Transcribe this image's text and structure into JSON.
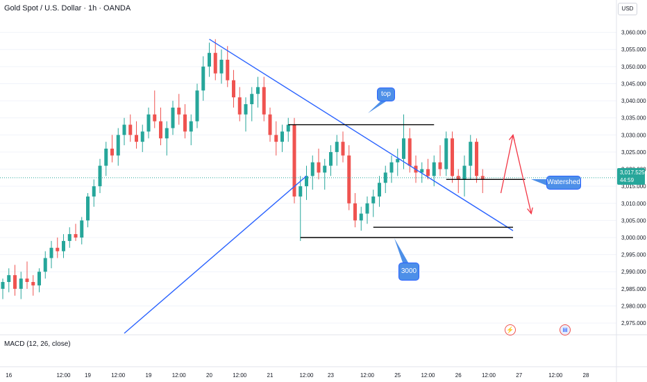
{
  "header": {
    "title": "Gold Spot / U.S. Dollar · 1h · OANDA",
    "currency": "USD"
  },
  "last_price": {
    "value": "3,017.525",
    "countdown": "44:59"
  },
  "indicator_label": "MACD (12, 26, close)",
  "annotations": {
    "top": "top",
    "support": "3000",
    "watershed": "Watershed"
  },
  "colors": {
    "up": "#26a69a",
    "down": "#ef5350",
    "trendline": "#2962ff",
    "level": "#000000",
    "arrow": "#f23645",
    "callout": "#4d8fe8"
  },
  "icons": {
    "event_lightning": "lightning-icon",
    "event_flag": "us-flag-icon"
  },
  "chart_data": {
    "type": "candlestick",
    "interval": "1h",
    "ylim": [
      2972,
      3065
    ],
    "y_ticks": [
      "3,060.000",
      "3,055.000",
      "3,050.000",
      "3,045.000",
      "3,040.000",
      "3,035.000",
      "3,030.000",
      "3,025.000",
      "3,020.000",
      "3,015.000",
      "3,010.000",
      "3,005.000",
      "3,000.000",
      "2,995.000",
      "2,990.000",
      "2,985.000",
      "2,980.000",
      "2,975.000"
    ],
    "y_tick_values": [
      3060,
      3055,
      3050,
      3045,
      3040,
      3035,
      3030,
      3025,
      3020,
      3015,
      3010,
      3005,
      3000,
      2995,
      2990,
      2985,
      2980,
      2975
    ],
    "x_ticks": [
      {
        "label": "16",
        "bar": 1
      },
      {
        "label": "12:00",
        "bar": 10
      },
      {
        "label": "19",
        "bar": 14
      },
      {
        "label": "12:00",
        "bar": 19
      },
      {
        "label": "19",
        "bar": 24
      },
      {
        "label": "12:00",
        "bar": 29
      },
      {
        "label": "20",
        "bar": 34
      },
      {
        "label": "12:00",
        "bar": 39
      },
      {
        "label": "21",
        "bar": 44
      },
      {
        "label": "12:00",
        "bar": 50
      },
      {
        "label": "23",
        "bar": 54
      },
      {
        "label": "12:00",
        "bar": 60
      },
      {
        "label": "25",
        "bar": 65
      },
      {
        "label": "12:00",
        "bar": 70
      },
      {
        "label": "26",
        "bar": 75
      },
      {
        "label": "12:00",
        "bar": 80
      },
      {
        "label": "27",
        "bar": 85
      },
      {
        "label": "12:00",
        "bar": 91
      },
      {
        "label": "28",
        "bar": 96
      }
    ],
    "candles": [
      [
        2985,
        2988,
        2982,
        2987
      ],
      [
        2987,
        2991,
        2984,
        2989
      ],
      [
        2989,
        2992,
        2983,
        2985
      ],
      [
        2985,
        2990,
        2982,
        2988
      ],
      [
        2988,
        2993,
        2985,
        2987
      ],
      [
        2987,
        2989,
        2983,
        2986
      ],
      [
        2986,
        2991,
        2984,
        2990
      ],
      [
        2990,
        2996,
        2988,
        2994
      ],
      [
        2994,
        2999,
        2991,
        2997
      ],
      [
        2997,
        3000,
        2994,
        2996
      ],
      [
        2996,
        3001,
        2994,
        2999
      ],
      [
        2999,
        3003,
        2997,
        3001
      ],
      [
        3001,
        3004,
        2999,
        3000
      ],
      [
        3000,
        3006,
        2998,
        3005
      ],
      [
        3005,
        3013,
        3003,
        3012
      ],
      [
        3012,
        3017,
        3009,
        3015
      ],
      [
        3015,
        3023,
        3013,
        3021
      ],
      [
        3021,
        3028,
        3018,
        3026
      ],
      [
        3026,
        3030,
        3022,
        3024
      ],
      [
        3024,
        3032,
        3021,
        3030
      ],
      [
        3030,
        3035,
        3027,
        3033
      ],
      [
        3033,
        3036,
        3028,
        3030
      ],
      [
        3030,
        3034,
        3026,
        3028
      ],
      [
        3028,
        3033,
        3025,
        3031
      ],
      [
        3031,
        3038,
        3029,
        3036
      ],
      [
        3036,
        3043,
        3032,
        3034
      ],
      [
        3034,
        3038,
        3027,
        3029
      ],
      [
        3029,
        3034,
        3024,
        3032
      ],
      [
        3032,
        3040,
        3030,
        3038
      ],
      [
        3038,
        3042,
        3033,
        3036
      ],
      [
        3036,
        3039,
        3029,
        3031
      ],
      [
        3031,
        3036,
        3027,
        3034
      ],
      [
        3034,
        3045,
        3032,
        3043
      ],
      [
        3043,
        3053,
        3040,
        3050
      ],
      [
        3050,
        3057,
        3047,
        3054
      ],
      [
        3054,
        3058,
        3046,
        3048
      ],
      [
        3048,
        3055,
        3045,
        3052
      ],
      [
        3052,
        3056,
        3044,
        3046
      ],
      [
        3046,
        3049,
        3038,
        3041
      ],
      [
        3041,
        3044,
        3034,
        3036
      ],
      [
        3036,
        3041,
        3031,
        3039
      ],
      [
        3039,
        3044,
        3034,
        3042
      ],
      [
        3042,
        3047,
        3038,
        3044
      ],
      [
        3044,
        3047,
        3034,
        3036
      ],
      [
        3036,
        3038,
        3028,
        3030
      ],
      [
        3030,
        3034,
        3024,
        3028
      ],
      [
        3028,
        3033,
        3025,
        3031
      ],
      [
        3031,
        3035,
        3028,
        3033
      ],
      [
        3033,
        3035,
        3010,
        3012
      ],
      [
        3012,
        3018,
        2999,
        3015
      ],
      [
        3015,
        3021,
        3011,
        3018
      ],
      [
        3018,
        3024,
        3014,
        3022
      ],
      [
        3022,
        3026,
        3017,
        3019
      ],
      [
        3019,
        3023,
        3014,
        3021
      ],
      [
        3021,
        3027,
        3018,
        3025
      ],
      [
        3025,
        3030,
        3021,
        3028
      ],
      [
        3028,
        3031,
        3022,
        3024
      ],
      [
        3024,
        3027,
        3008,
        3010
      ],
      [
        3010,
        3013,
        3003,
        3005
      ],
      [
        3005,
        3009,
        3002,
        3007
      ],
      [
        3007,
        3012,
        3004,
        3010
      ],
      [
        3010,
        3014,
        3006,
        3012
      ],
      [
        3012,
        3018,
        3009,
        3016
      ],
      [
        3016,
        3021,
        3013,
        3019
      ],
      [
        3019,
        3024,
        3016,
        3022
      ],
      [
        3022,
        3026,
        3018,
        3023
      ],
      [
        3023,
        3036,
        3020,
        3029
      ],
      [
        3029,
        3032,
        3019,
        3021
      ],
      [
        3021,
        3024,
        3016,
        3019
      ],
      [
        3019,
        3022,
        3016,
        3020
      ],
      [
        3020,
        3023,
        3017,
        3018
      ],
      [
        3018,
        3024,
        3015,
        3022
      ],
      [
        3022,
        3027,
        3018,
        3020
      ],
      [
        3020,
        3031,
        3018,
        3029
      ],
      [
        3029,
        3031,
        3016,
        3018
      ],
      [
        3018,
        3020,
        3013,
        3017
      ],
      [
        3017,
        3024,
        3012,
        3021
      ],
      [
        3021,
        3030,
        3017,
        3028
      ],
      [
        3028,
        3029,
        3016,
        3018
      ],
      [
        3018,
        3020,
        3013,
        3017
      ]
    ],
    "trendlines": [
      {
        "from": [
          34,
          3058
        ],
        "to": [
          84,
          3002
        ]
      },
      {
        "from": [
          20,
          2972
        ],
        "to": [
          50,
          3018
        ]
      }
    ],
    "horizontal_levels": [
      {
        "price": 3033,
        "from_bar": 47,
        "to_bar": 71,
        "label": "top"
      },
      {
        "price": 3000,
        "from_bar": 49,
        "to_bar": 84,
        "label": "3000"
      },
      {
        "price": 3003,
        "from_bar": 61,
        "to_bar": 84
      },
      {
        "price": 3017,
        "from_bar": 73,
        "to_bar": 86,
        "label": "Watershed"
      }
    ],
    "projection_arrows": [
      {
        "from": [
          82,
          3013
        ],
        "to": [
          84,
          3030
        ]
      },
      {
        "from": [
          84,
          3030
        ],
        "to": [
          87,
          3007
        ]
      }
    ]
  }
}
